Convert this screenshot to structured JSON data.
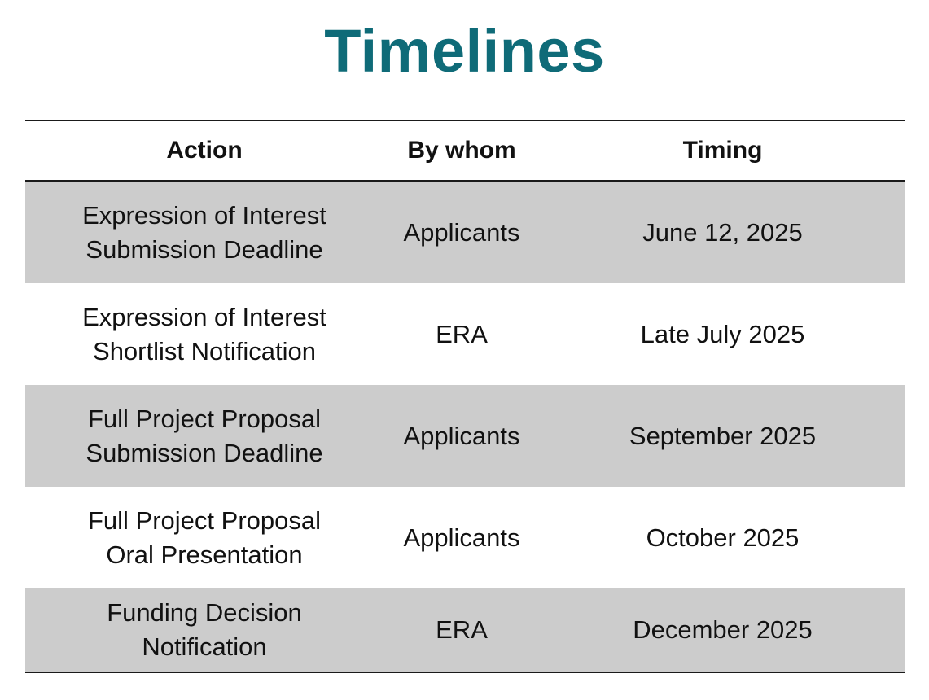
{
  "title": "Timelines",
  "table": {
    "headers": [
      "Action",
      "By whom",
      "Timing"
    ],
    "rows": [
      {
        "action": "Expression of Interest\nSubmission Deadline",
        "by_whom": "Applicants",
        "timing": "June 12, 2025"
      },
      {
        "action": "Expression of Interest\nShortlist Notification",
        "by_whom": "ERA",
        "timing": "Late July 2025"
      },
      {
        "action": "Full Project Proposal\nSubmission Deadline",
        "by_whom": "Applicants",
        "timing": "September 2025"
      },
      {
        "action": "Full Project Proposal\nOral Presentation",
        "by_whom": "Applicants",
        "timing": "October 2025"
      },
      {
        "action": "Funding Decision\nNotification",
        "by_whom": "ERA",
        "timing": "December 2025"
      }
    ]
  },
  "colors": {
    "title": "#0f6b78",
    "shaded_row": "#cccccc",
    "rule": "#1a1a1a"
  }
}
